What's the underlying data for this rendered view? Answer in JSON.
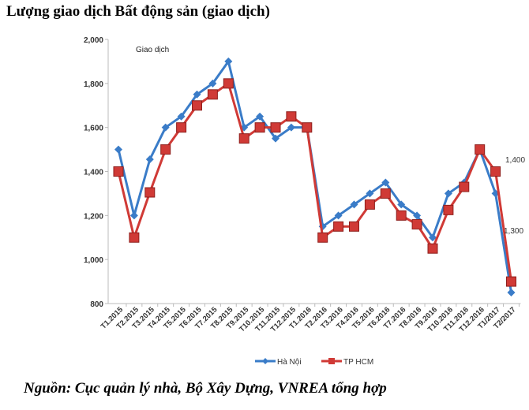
{
  "title": "Lượng giao dịch Bất động sản (giao dịch)",
  "source": "Nguồn: Cục quản lý nhà, Bộ Xây Dựng, VNREA tổng hợp",
  "chart_data": {
    "type": "line",
    "title": "Lượng giao dịch Bất động sản (giao dịch)",
    "ylabel": "Giao dịch",
    "xlabel": "",
    "ylim": [
      800,
      2000
    ],
    "yticks": [
      "800",
      "1,000",
      "1,200",
      "1,400",
      "1,600",
      "1,800",
      "2,000"
    ],
    "ytick_values": [
      800,
      1000,
      1200,
      1400,
      1600,
      1800,
      2000
    ],
    "grid": false,
    "legend": "bottom",
    "categories": [
      "T1.2015",
      "T2.2015",
      "T3.2015",
      "T4.2015",
      "T5.2015",
      "T6.2015",
      "T7.2015",
      "T8.2015",
      "T9.2015",
      "T10.2015",
      "T11.2015",
      "T12.2015",
      "T1.2016",
      "T2.2016",
      "T3.2016",
      "T4.2016",
      "T5.2016",
      "T6.2016",
      "T7.2016",
      "T8.2016",
      "T9.2016",
      "T10.2016",
      "T11.2016",
      "T12.2016",
      "T1/2017",
      "T2/2017"
    ],
    "series": [
      {
        "name": "Hà Nội",
        "color": "#3a7cc8",
        "marker": "diamond",
        "values": [
          1500,
          1200,
          1455,
          1600,
          1650,
          1750,
          1800,
          1900,
          1600,
          1650,
          1550,
          1600,
          1600,
          1150,
          1200,
          1250,
          1300,
          1350,
          1250,
          1200,
          1100,
          1300,
          1350,
          1500,
          1300,
          850
        ]
      },
      {
        "name": "TP HCM",
        "color": "#d03a36",
        "marker": "square",
        "values": [
          1400,
          1100,
          1305,
          1500,
          1600,
          1700,
          1750,
          1800,
          1550,
          1600,
          1600,
          1650,
          1600,
          1100,
          1150,
          1150,
          1250,
          1300,
          1200,
          1160,
          1050,
          1225,
          1330,
          1500,
          1400,
          900
        ]
      }
    ],
    "annotations": [
      {
        "text": "1,400",
        "series": "TP HCM",
        "category": "T1/2017"
      },
      {
        "text": "1,300",
        "series": "Hà Nội",
        "category": "T1/2017"
      }
    ]
  }
}
